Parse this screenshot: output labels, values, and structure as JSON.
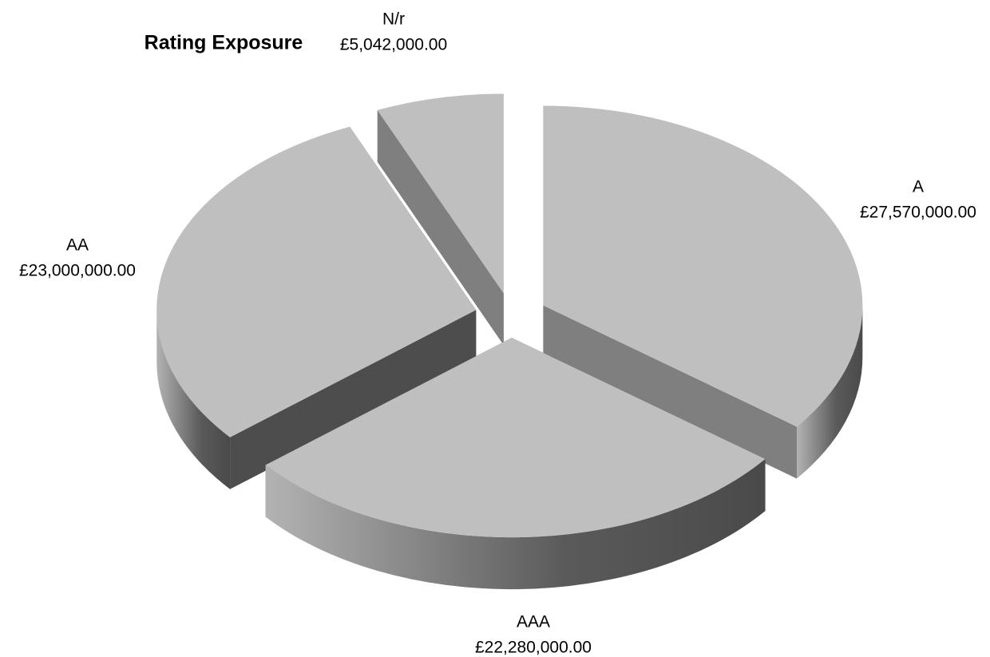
{
  "chart_data": {
    "type": "pie",
    "title": "Rating Exposure",
    "categories": [
      "A",
      "AAA",
      "AA",
      "N/r"
    ],
    "values": [
      27570000,
      22280000,
      23000000,
      5042000
    ],
    "value_labels": [
      "£27,570,000.00",
      "£22,280,000.00",
      "£23,000,000.00",
      "£5,042,000.00"
    ],
    "color": "#bfbfbf"
  }
}
